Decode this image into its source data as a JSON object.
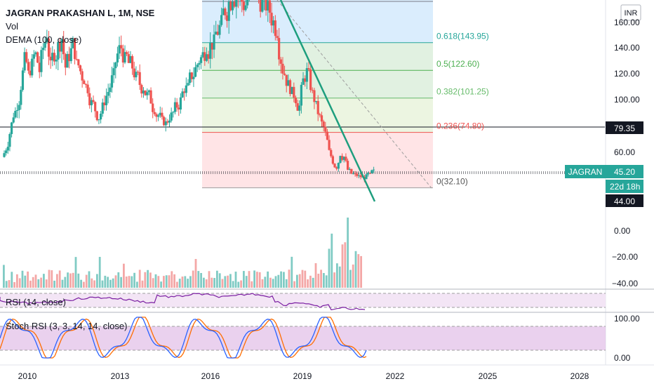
{
  "header": {
    "symbol": "JAGRAN PRAKASHAN L, 1M, NSE",
    "indicator1": "Vol",
    "indicator2": "DEMA (100, close)",
    "currency": "INR"
  },
  "colors": {
    "up": "#26a69a",
    "down": "#ef5350",
    "trend": "#26a69a",
    "rsi": "#7b1fa2",
    "stoch_k": "#2962ff",
    "stoch_d": "#ff6d00",
    "panel_fill": "#e1bee7"
  },
  "chart_data": {
    "type": "candlestick",
    "price_axis": {
      "ticks": [
        "160.00",
        "140.00",
        "120.00",
        "100.00",
        "60.00"
      ],
      "badges": {
        "line_level": "79.35",
        "symbol": "JAGRAN",
        "last": "45.20",
        "countdown": "22d 18h",
        "low": "44.00"
      }
    },
    "fibonacci": [
      {
        "ratio": "0.618",
        "price": 143.95,
        "label": "0.618(143.95)"
      },
      {
        "ratio": "0.5",
        "price": 122.6,
        "label": "0.5(122.60)"
      },
      {
        "ratio": "0.382",
        "price": 101.25,
        "label": "0.382(101.25)"
      },
      {
        "ratio": "0.236",
        "price": 74.8,
        "label": "0.236(74.80)"
      },
      {
        "ratio": "0",
        "price": 32.1,
        "label": "0(32.10)"
      }
    ],
    "horizontal_level": 79.35,
    "volume_axis": {
      "ticks": [
        "0.00",
        "−20.00",
        "−40.00"
      ]
    },
    "rsi": {
      "label": "RSI (14, close)"
    },
    "stoch_rsi": {
      "label": "Stoch RSI (3, 3, 14, 14, close)",
      "ticks": [
        "100.00",
        "0.00"
      ]
    },
    "x_axis": {
      "ticks": [
        "2010",
        "2013",
        "2016",
        "2019",
        "2022",
        "2025",
        "2028"
      ]
    },
    "monthly_close": [
      62,
      74,
      88,
      95,
      110,
      132,
      120,
      128,
      135,
      122,
      140,
      150,
      126,
      134,
      142,
      147,
      125,
      133,
      144,
      128,
      122,
      115,
      108,
      98,
      92,
      86,
      95,
      103,
      110,
      120,
      135,
      140,
      132,
      128,
      125,
      118,
      112,
      109,
      104,
      99,
      92,
      88,
      84,
      82,
      86,
      90,
      95,
      100,
      108,
      110,
      118,
      124,
      130,
      135,
      140,
      142,
      145,
      152,
      160,
      168,
      175,
      180,
      185,
      178,
      172,
      178,
      182,
      185,
      180,
      176,
      172,
      168,
      160,
      152,
      130,
      120,
      112,
      106,
      100,
      95,
      115,
      122,
      110,
      100,
      90,
      82,
      74,
      60,
      52,
      48,
      58,
      56,
      46,
      43,
      42,
      41,
      40,
      41,
      42,
      45
    ]
  }
}
